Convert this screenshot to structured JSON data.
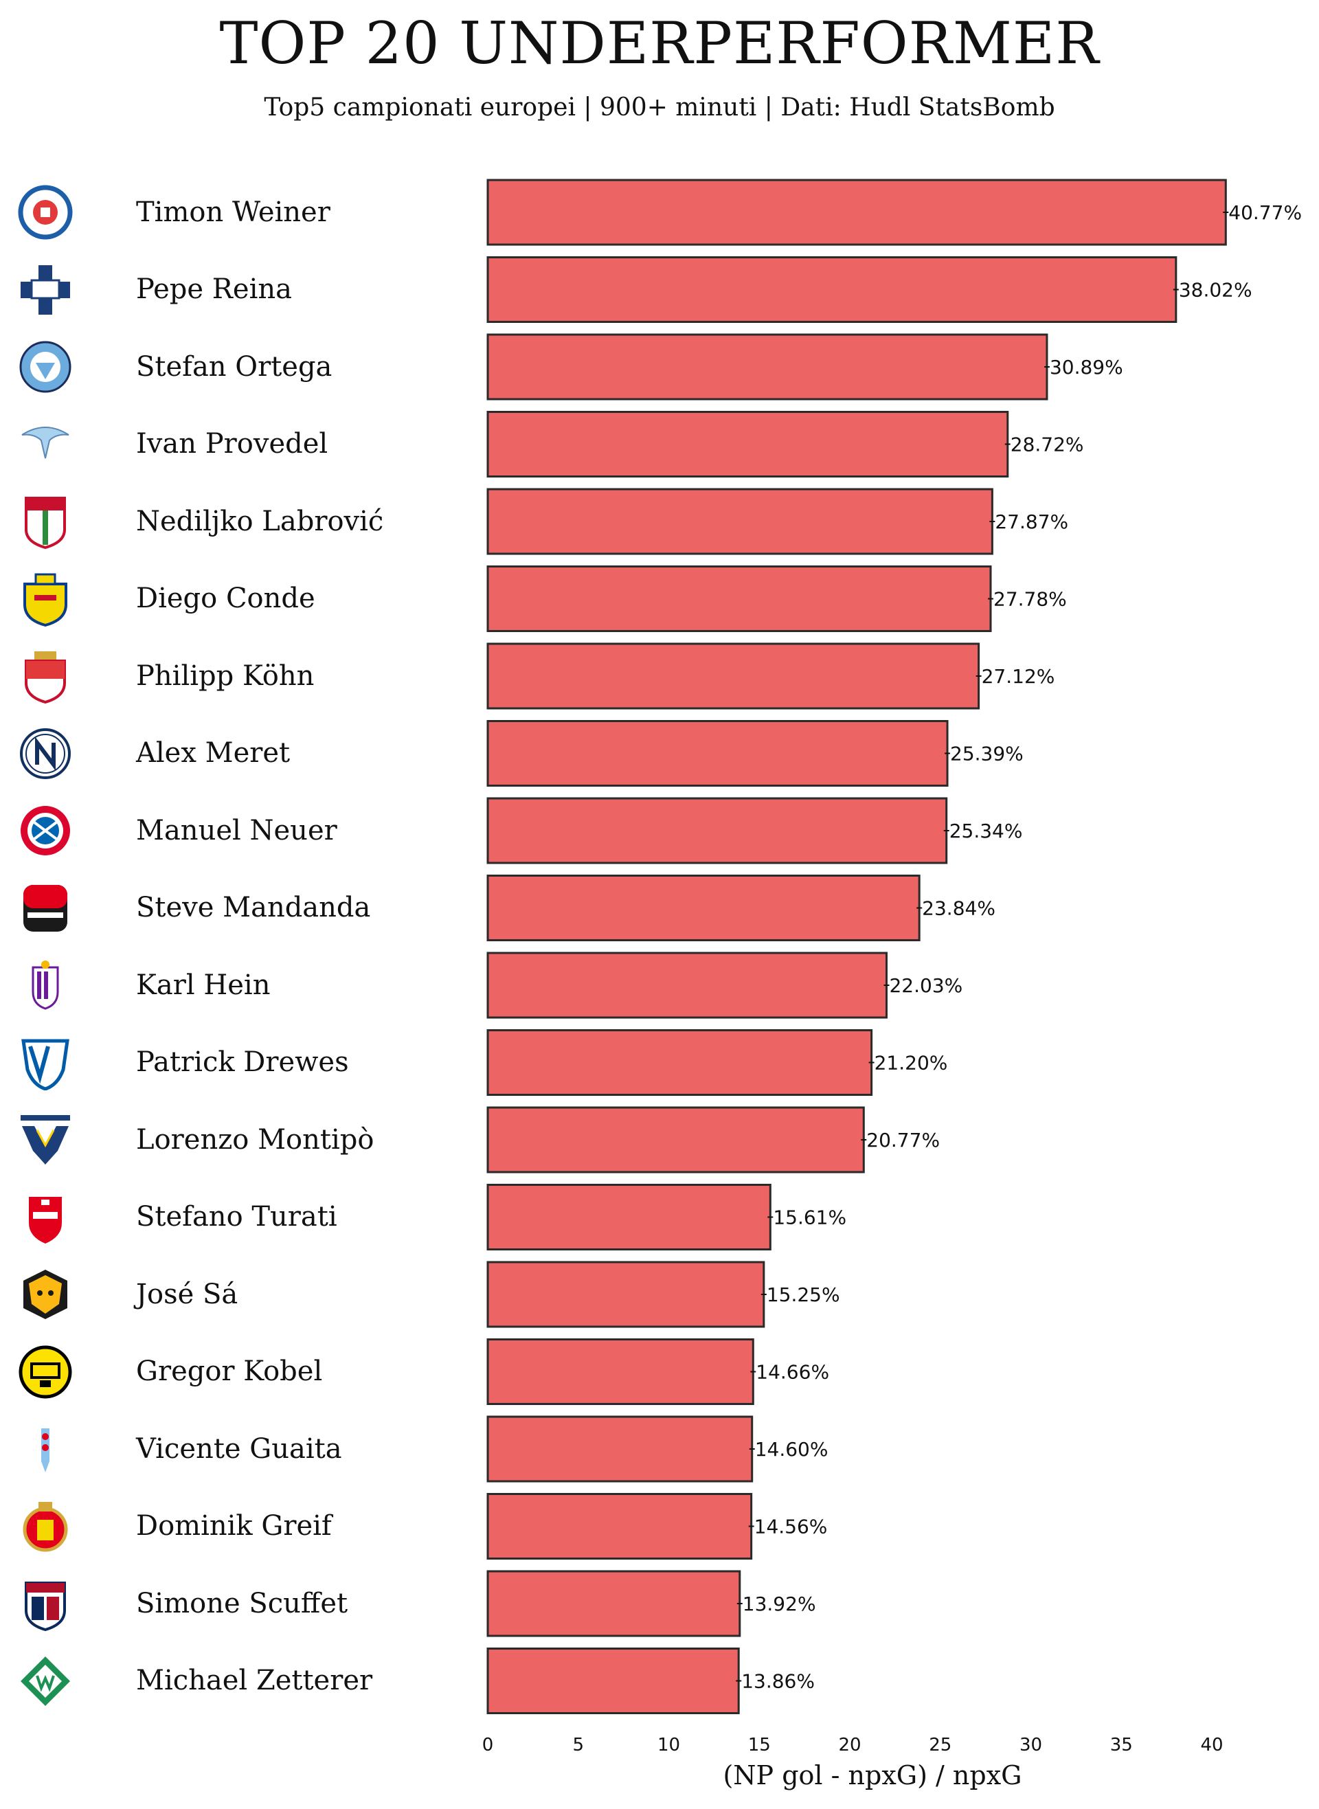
{
  "header": {
    "title": "TOP 20 UNDERPERFORMER",
    "subtitle": "Top5 campionati europei | 900+ minuti | Dati: Hudl StatsBomb"
  },
  "colors": {
    "bar_fill": "#ec6464",
    "bar_stroke": "#2a2a2a",
    "text": "#111111"
  },
  "chart_data": {
    "type": "bar",
    "orientation": "horizontal",
    "title": "TOP 20 UNDERPERFORMER",
    "subtitle": "Top5 campionati europei | 900+ minuti | Dati: Hudl StatsBomb",
    "xlabel": "(NP gol - npxG) / npxG",
    "ylabel": "",
    "xlim": [
      0,
      42
    ],
    "xticks": [
      0,
      5,
      10,
      15,
      20,
      25,
      30,
      35,
      40
    ],
    "grid": false,
    "categories": [
      "Timon Weiner",
      "Pepe Reina",
      "Stefan Ortega",
      "Ivan Provedel",
      "Nediljko Labrović",
      "Diego Conde",
      "Philipp Köhn",
      "Alex Meret",
      "Manuel Neuer",
      "Steve Mandanda",
      "Karl Hein",
      "Patrick Drewes",
      "Lorenzo Montipò",
      "Stefano Turati",
      "José Sá",
      "Gregor Kobel",
      "Vicente Guaita",
      "Dominik Greif",
      "Simone Scuffet",
      "Michael Zetterer"
    ],
    "values": [
      40.77,
      38.02,
      30.89,
      28.72,
      27.87,
      27.78,
      27.12,
      25.39,
      25.34,
      23.84,
      22.03,
      21.2,
      20.77,
      15.61,
      15.25,
      14.66,
      14.6,
      14.56,
      13.92,
      13.86
    ],
    "value_labels": [
      "40.77%",
      "38.02%",
      "30.89%",
      "28.72%",
      "27.87%",
      "27.78%",
      "27.12%",
      "25.39%",
      "25.34%",
      "23.84%",
      "22.03%",
      "21.20%",
      "20.77%",
      "15.61%",
      "15.25%",
      "14.66%",
      "14.60%",
      "14.56%",
      "13.92%",
      "13.86%"
    ],
    "team_logos": [
      "kiel-crest-icon",
      "como-crest-icon",
      "man-city-crest-icon",
      "lazio-eagle-icon",
      "augsburg-crest-icon",
      "villarreal-crest-icon",
      "monaco-crest-icon",
      "napoli-crest-icon",
      "bayern-crest-icon",
      "rennes-crest-icon",
      "valladolid-crest-icon",
      "bochum-crest-icon",
      "verona-crest-icon",
      "monza-crest-icon",
      "wolves-crest-icon",
      "dortmund-crest-icon",
      "celta-crest-icon",
      "mallorca-crest-icon",
      "cagliari-crest-icon",
      "werder-crest-icon"
    ]
  }
}
